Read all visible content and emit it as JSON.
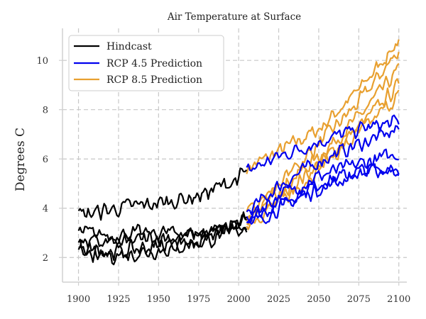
{
  "chart_data": {
    "type": "line",
    "title": "Air Temperature at Surface",
    "xlabel": "",
    "ylabel": "Degrees C",
    "xlim": [
      1890,
      2105
    ],
    "ylim": [
      1.0,
      11.3
    ],
    "xticks": [
      1900,
      1925,
      1950,
      1975,
      2000,
      2025,
      2050,
      2075,
      2100
    ],
    "yticks": [
      2,
      4,
      6,
      8,
      10
    ],
    "xtick_labels": [
      "1900",
      "1925",
      "1950",
      "1975",
      "2000",
      "2025",
      "2050",
      "2075",
      "2100"
    ],
    "ytick_labels": [
      "2",
      "4",
      "6",
      "8",
      "10"
    ],
    "grid": true,
    "legend_position": "top-left",
    "legend": [
      {
        "label": "Hindcast",
        "color": "#000000"
      },
      {
        "label": "RCP 4.5 Prediction",
        "color": "#0000ee"
      },
      {
        "label": "RCP 8.5 Prediction",
        "color": "#e8a030"
      }
    ],
    "series": [
      {
        "group": "Hindcast",
        "color": "#000000",
        "x": [
          1900,
          1925,
          1950,
          1975,
          2000,
          2005
        ],
        "y": [
          3.7,
          4.0,
          4.2,
          4.5,
          5.2,
          5.5
        ]
      },
      {
        "group": "Hindcast",
        "color": "#000000",
        "x": [
          1900,
          1925,
          1950,
          1975,
          2000,
          2005
        ],
        "y": [
          3.0,
          2.9,
          3.0,
          3.0,
          3.4,
          3.7
        ]
      },
      {
        "group": "Hindcast",
        "color": "#000000",
        "x": [
          1900,
          1925,
          1950,
          1975,
          2000,
          2005
        ],
        "y": [
          2.6,
          2.6,
          2.8,
          2.9,
          3.3,
          3.6
        ]
      },
      {
        "group": "Hindcast",
        "color": "#000000",
        "x": [
          1900,
          1925,
          1950,
          1975,
          2000,
          2005
        ],
        "y": [
          2.4,
          2.2,
          2.5,
          2.7,
          3.2,
          3.5
        ]
      },
      {
        "group": "Hindcast",
        "color": "#000000",
        "x": [
          1900,
          1925,
          1950,
          1975,
          2000,
          2005
        ],
        "y": [
          2.1,
          2.1,
          2.3,
          2.6,
          3.1,
          3.3
        ]
      },
      {
        "group": "RCP 4.5 Prediction",
        "color": "#0000ee",
        "x": [
          2005,
          2025,
          2050,
          2075,
          2100
        ],
        "y": [
          5.5,
          6.1,
          6.7,
          7.2,
          7.5
        ]
      },
      {
        "group": "RCP 4.5 Prediction",
        "color": "#0000ee",
        "x": [
          2005,
          2025,
          2050,
          2075,
          2100
        ],
        "y": [
          3.8,
          4.9,
          5.9,
          6.6,
          7.2
        ]
      },
      {
        "group": "RCP 4.5 Prediction",
        "color": "#0000ee",
        "x": [
          2005,
          2025,
          2050,
          2075,
          2100
        ],
        "y": [
          3.6,
          4.5,
          5.3,
          5.8,
          6.2
        ]
      },
      {
        "group": "RCP 4.5 Prediction",
        "color": "#0000ee",
        "x": [
          2005,
          2025,
          2050,
          2075,
          2100
        ],
        "y": [
          3.5,
          4.2,
          5.0,
          5.5,
          5.7
        ]
      },
      {
        "group": "RCP 4.5 Prediction",
        "color": "#0000ee",
        "x": [
          2005,
          2025,
          2050,
          2075,
          2100
        ],
        "y": [
          3.3,
          4.0,
          4.8,
          5.4,
          5.6
        ]
      },
      {
        "group": "RCP 8.5 Prediction",
        "color": "#e8a030",
        "x": [
          2005,
          2025,
          2050,
          2075,
          2100
        ],
        "y": [
          5.6,
          6.3,
          7.2,
          8.8,
          10.8
        ]
      },
      {
        "group": "RCP 8.5 Prediction",
        "color": "#e8a030",
        "x": [
          2005,
          2025,
          2050,
          2075,
          2100
        ],
        "y": [
          3.7,
          5.0,
          6.6,
          8.3,
          10.4
        ]
      },
      {
        "group": "RCP 8.5 Prediction",
        "color": "#e8a030",
        "x": [
          2005,
          2025,
          2050,
          2075,
          2100
        ],
        "y": [
          3.6,
          4.7,
          6.1,
          7.7,
          9.6
        ]
      },
      {
        "group": "RCP 8.5 Prediction",
        "color": "#e8a030",
        "x": [
          2005,
          2025,
          2050,
          2075,
          2100
        ],
        "y": [
          3.5,
          4.4,
          5.8,
          7.3,
          9.0
        ]
      },
      {
        "group": "RCP 8.5 Prediction",
        "color": "#e8a030",
        "x": [
          2005,
          2025,
          2050,
          2075,
          2100
        ],
        "y": [
          3.4,
          4.2,
          5.6,
          7.0,
          8.6
        ]
      }
    ]
  }
}
